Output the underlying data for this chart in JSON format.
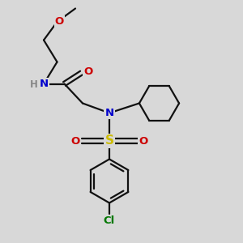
{
  "bg_color": "#d8d8d8",
  "atom_colors": {
    "O": "#cc0000",
    "N": "#0000cc",
    "S": "#ccbb00",
    "Cl": "#007700",
    "H": "#888888"
  },
  "bond_color": "#111111",
  "bond_width": 1.6,
  "figsize": [
    3.0,
    3.0
  ],
  "dpi": 100,
  "xlim": [
    0,
    10
  ],
  "ylim": [
    0,
    10
  ]
}
